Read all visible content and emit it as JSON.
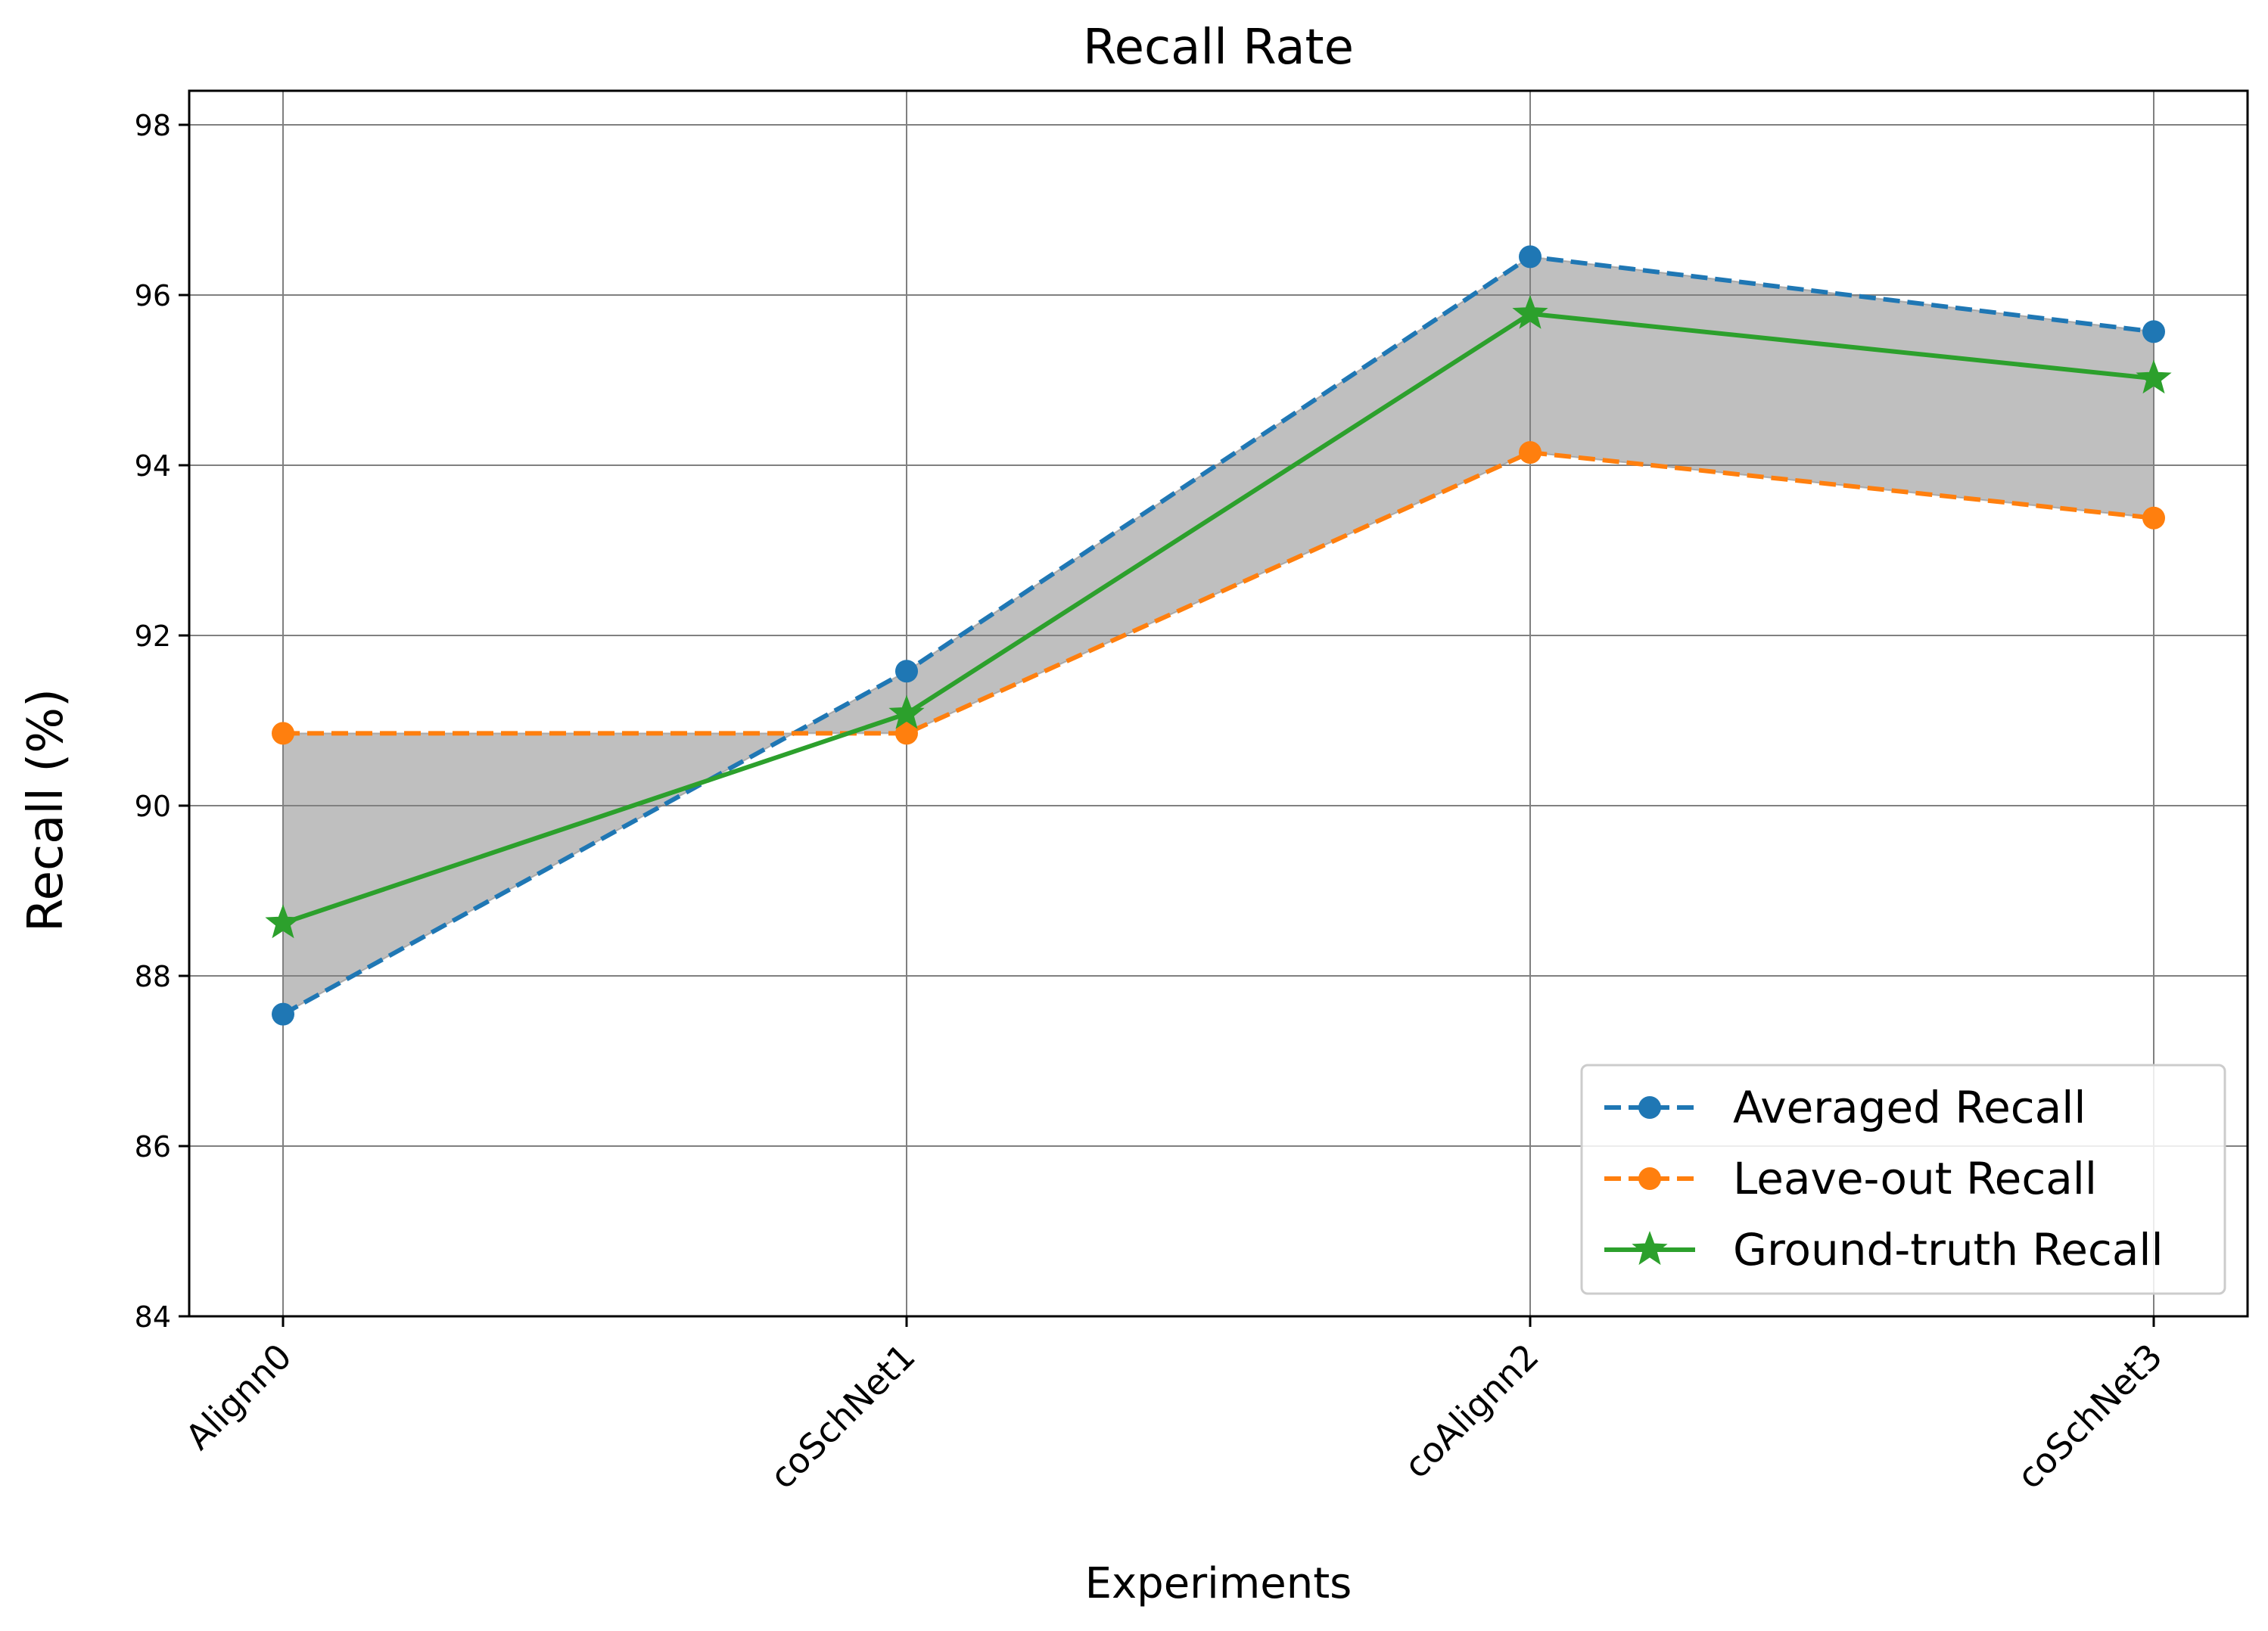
{
  "chart_data": {
    "type": "line",
    "title": "Recall Rate",
    "xlabel": "Experiments",
    "ylabel": "Recall (%)",
    "categories": [
      "Alignn0",
      "coSchNet1",
      "coAlignn2",
      "coSchNet3"
    ],
    "ylim": [
      84,
      98.4
    ],
    "yticks": [
      "84",
      "86",
      "88",
      "90",
      "92",
      "94",
      "96",
      "98"
    ],
    "grid": true,
    "legend_position": "lower-right",
    "shaded_band": {
      "between": [
        "Averaged Recall",
        "Leave-out Recall"
      ],
      "color": "#808080"
    },
    "series": [
      {
        "name": "Averaged Recall",
        "values": [
          87.55,
          91.58,
          96.45,
          95.57
        ],
        "color": "#1f77b4",
        "linestyle": "dashed",
        "marker": "circle"
      },
      {
        "name": "Leave-out Recall",
        "values": [
          90.85,
          90.85,
          94.15,
          93.38
        ],
        "color": "#ff7f0e",
        "linestyle": "dashed",
        "marker": "circle"
      },
      {
        "name": "Ground-truth Recall",
        "values": [
          88.62,
          91.08,
          95.78,
          95.02
        ],
        "color": "#2ca02c",
        "linestyle": "solid",
        "marker": "star"
      }
    ]
  }
}
